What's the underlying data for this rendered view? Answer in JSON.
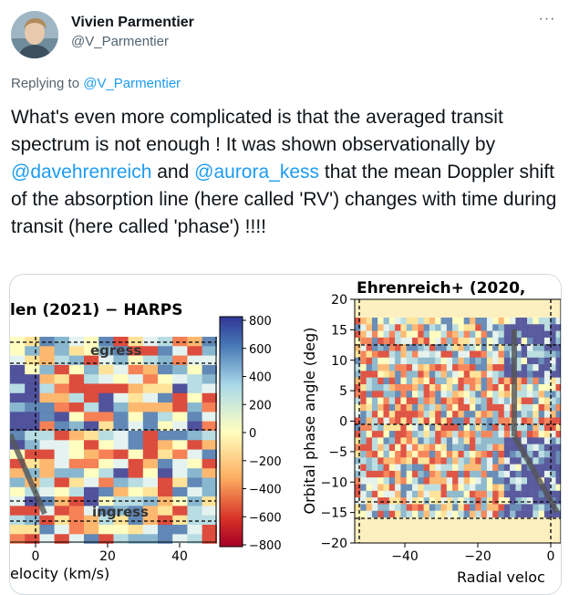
{
  "author": {
    "name": "Vivien Parmentier",
    "handle": "@V_Parmentier",
    "avatar_icon": "avatar-photo"
  },
  "reply": {
    "prefix": "Replying to",
    "to": "@V_Parmentier"
  },
  "tweet": {
    "part1": "What's even more complicated is that the averaged transit spectrum is not enough ! It was shown observationally by",
    "mention1": "@davehrenreich",
    "and": "and",
    "mention2": "@aurora_kess",
    "part2": "that the mean Doppler shift of the absorption line  (here called 'RV') changes with time during transit (here called 'phase')  !!!!"
  },
  "colors": {
    "link": "#1d9bf0",
    "muted": "#536471",
    "text": "#0f1419"
  },
  "chart_data": [
    {
      "type": "heatmap",
      "title": "len (2021) − HARPS",
      "xlabel": "elocity (km/s)",
      "x_ticks": [
        "0",
        "20",
        "40"
      ],
      "annotations": [
        "egress",
        "ingress"
      ],
      "colorbar_ticks": [
        "800",
        "600",
        "400",
        "200",
        "0",
        "−200",
        "−400",
        "−600",
        "−800"
      ],
      "colorbar_range": [
        -800,
        800
      ]
    },
    {
      "type": "heatmap",
      "title": "Ehrenreich+ (2020,",
      "xlabel": "Radial veloc",
      "ylabel": "Orbital phase angle (deg)",
      "x_ticks": [
        "−40",
        "−20",
        "0"
      ],
      "y_ticks": [
        "20",
        "15",
        "10",
        "5",
        "0",
        "−5",
        "−10",
        "−15",
        "−20"
      ],
      "ylim": [
        -20,
        20
      ]
    }
  ]
}
